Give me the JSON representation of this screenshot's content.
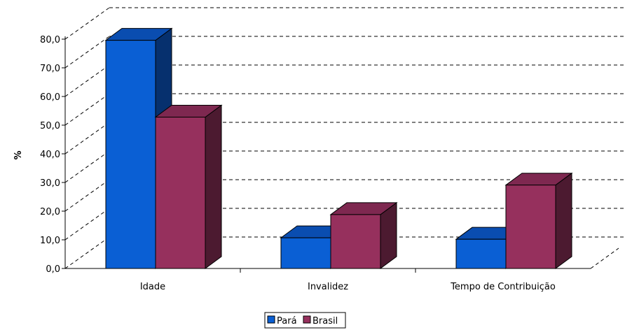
{
  "chart_data": {
    "type": "bar",
    "title": "",
    "xlabel": "",
    "ylabel": "%",
    "ylim": [
      0,
      80
    ],
    "yticks": [
      0,
      10,
      20,
      30,
      40,
      50,
      60,
      70,
      80
    ],
    "ytick_labels": [
      "0,0",
      "10,0",
      "20,0",
      "30,0",
      "40,0",
      "50,0",
      "60,0",
      "70,0",
      "80,0"
    ],
    "categories": [
      "Idade",
      "Invalidez",
      "Tempo de Contribuição"
    ],
    "series": [
      {
        "name": "Pará",
        "values": [
          79.6,
          10.7,
          10.2
        ],
        "color": "#0a5fd4",
        "side_color": "#06306e",
        "top_color": "#0a4db0"
      },
      {
        "name": "Brasil",
        "values": [
          52.8,
          18.8,
          29.1
        ],
        "color": "#96305d",
        "side_color": "#4c1a30",
        "top_color": "#7e2850"
      }
    ],
    "grid": true,
    "legend_position": "bottom-center"
  }
}
